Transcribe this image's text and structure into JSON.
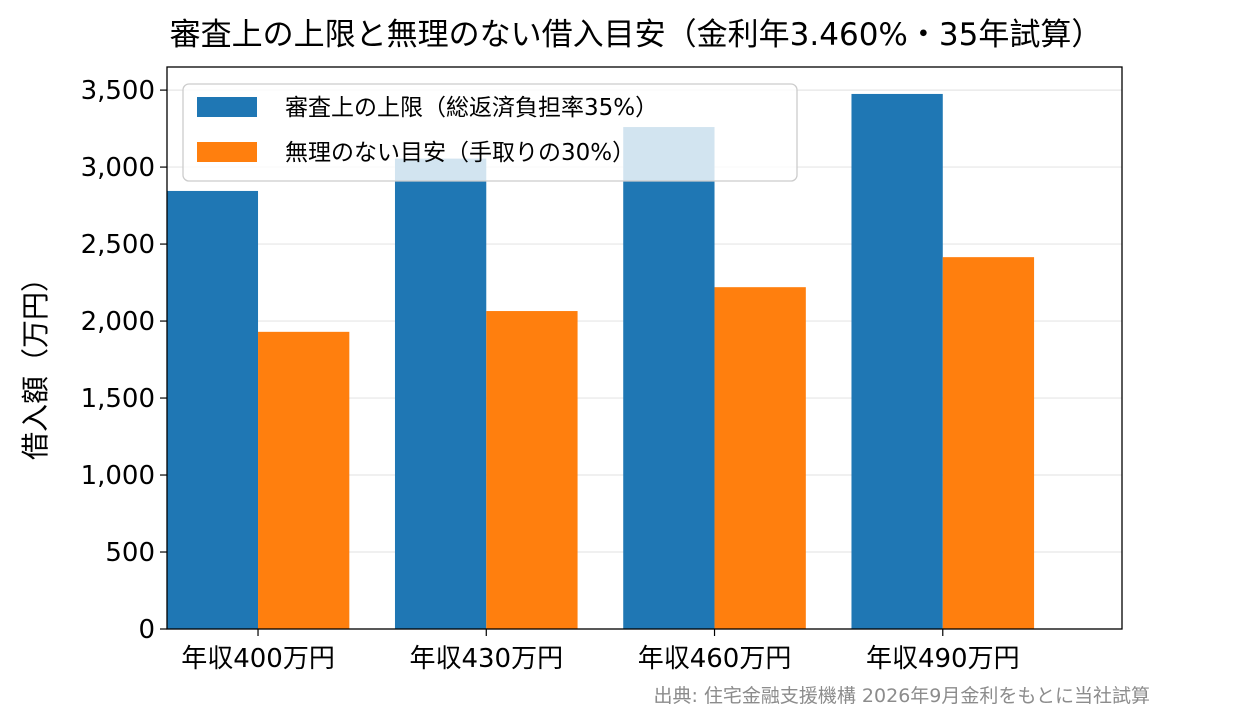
{
  "chart_data": {
    "type": "bar",
    "title": "審査上の上限と無理のない借入目安（金利年3.460%・35年試算）",
    "ylabel": "借入額（万円）",
    "xlabel": "",
    "categories": [
      "年収400万円",
      "年収430万円",
      "年収460万円",
      "年収490万円"
    ],
    "series": [
      {
        "name": "審査上の上限（総返済負担率35%）",
        "color": "#1f77b4",
        "values": [
          2845,
          3055,
          3260,
          3475
        ]
      },
      {
        "name": "無理のない目安（手取りの30%）",
        "color": "#ff7f0e",
        "values": [
          1930,
          2065,
          2220,
          2415
        ]
      }
    ],
    "ylim": [
      0,
      3650
    ],
    "yticks": [
      0,
      500,
      1000,
      1500,
      2000,
      2500,
      3000,
      3500
    ],
    "ytick_labels": [
      "0",
      "500",
      "1,000",
      "1,500",
      "2,000",
      "2,500",
      "3,000",
      "3,500"
    ],
    "grid": "horizontal",
    "legend_position": "top-left",
    "source_note": "出典: 住宅金融支援機構 2026年9月金利をもとに当社試算"
  }
}
